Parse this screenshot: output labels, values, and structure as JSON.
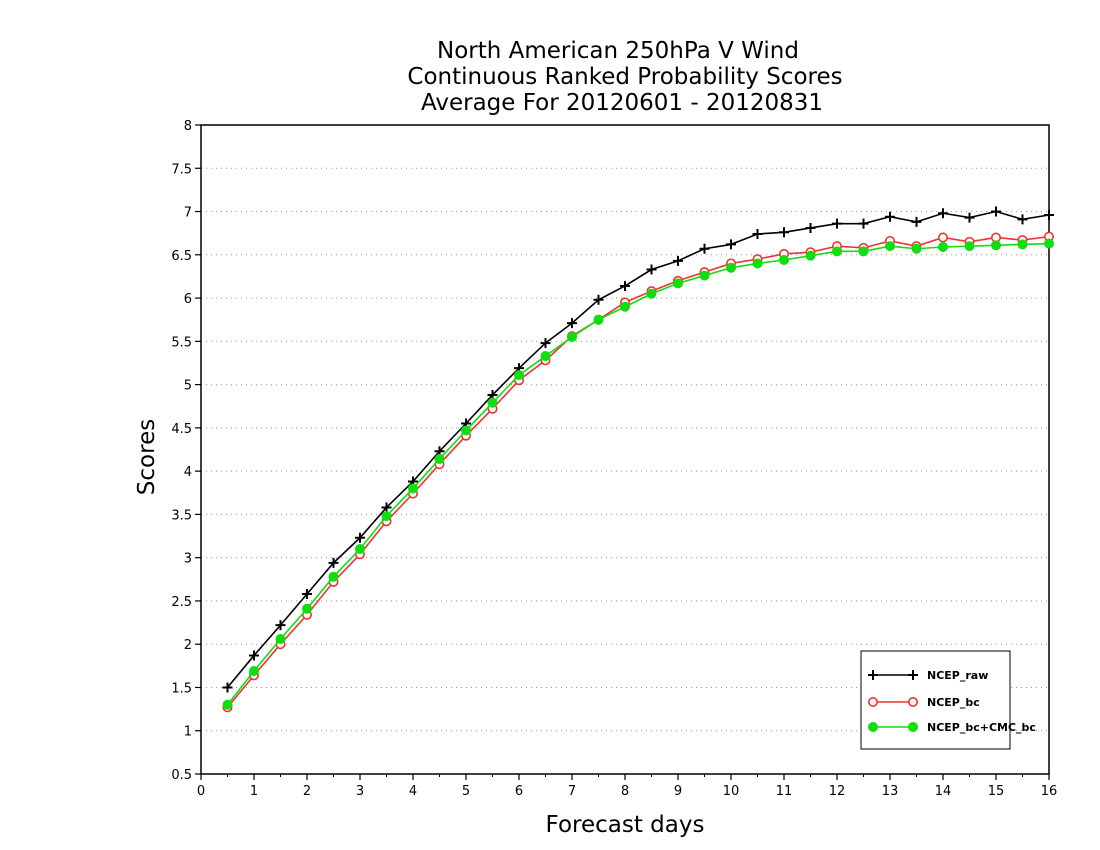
{
  "chart_data": {
    "type": "line",
    "title": [
      "North American 250hPa V Wind",
      "Continuous Ranked Probability Scores",
      "Average For 20120601 - 20120831"
    ],
    "xlabel": "Forecast days",
    "ylabel": "Scores",
    "xlim": [
      0,
      16
    ],
    "ylim": [
      0.5,
      8
    ],
    "xticks": [
      "0",
      "1",
      "2",
      "3",
      "4",
      "5",
      "6",
      "7",
      "8",
      "9",
      "10",
      "11",
      "12",
      "13",
      "14",
      "15",
      "16"
    ],
    "yticks": [
      "0.5",
      "1",
      "1.5",
      "2",
      "2.5",
      "3",
      "3.5",
      "4",
      "4.5",
      "5",
      "5.5",
      "6",
      "6.5",
      "7",
      "7.5",
      "8"
    ],
    "grid": true,
    "legend_position": "bottom-right",
    "x": [
      0.5,
      1,
      1.5,
      2,
      2.5,
      3,
      3.5,
      4,
      4.5,
      5,
      5.5,
      6,
      6.5,
      7,
      7.5,
      8,
      8.5,
      9,
      9.5,
      10,
      10.5,
      11,
      11.5,
      12,
      12.5,
      13,
      13.5,
      14,
      14.5,
      15,
      15.5,
      16
    ],
    "series": [
      {
        "name": "NCEP_raw",
        "color": "#000000",
        "marker": "plus",
        "values": [
          1.5,
          1.87,
          2.22,
          2.58,
          2.94,
          3.23,
          3.58,
          3.88,
          4.23,
          4.55,
          4.88,
          5.19,
          5.48,
          5.71,
          5.98,
          6.14,
          6.33,
          6.43,
          6.57,
          6.62,
          6.74,
          6.76,
          6.81,
          6.86,
          6.86,
          6.94,
          6.88,
          6.98,
          6.93,
          7.0,
          6.91,
          6.96
        ]
      },
      {
        "name": "NCEP_bc",
        "color": "#ee3333",
        "marker": "open-circle",
        "values": [
          1.27,
          1.64,
          2.0,
          2.34,
          2.72,
          3.04,
          3.42,
          3.74,
          4.08,
          4.41,
          4.72,
          5.05,
          5.28,
          5.56,
          5.75,
          5.95,
          6.08,
          6.2,
          6.3,
          6.4,
          6.45,
          6.51,
          6.53,
          6.6,
          6.58,
          6.66,
          6.6,
          6.7,
          6.65,
          6.7,
          6.67,
          6.71
        ]
      },
      {
        "name": "NCEP_bc+CMC_bc",
        "color": "#11dd11",
        "marker": "filled-circle",
        "values": [
          1.3,
          1.69,
          2.06,
          2.41,
          2.78,
          3.1,
          3.48,
          3.8,
          4.14,
          4.47,
          4.79,
          5.11,
          5.33,
          5.55,
          5.75,
          5.9,
          6.05,
          6.17,
          6.26,
          6.35,
          6.4,
          6.44,
          6.49,
          6.54,
          6.54,
          6.6,
          6.57,
          6.59,
          6.6,
          6.61,
          6.62,
          6.63
        ]
      }
    ]
  }
}
